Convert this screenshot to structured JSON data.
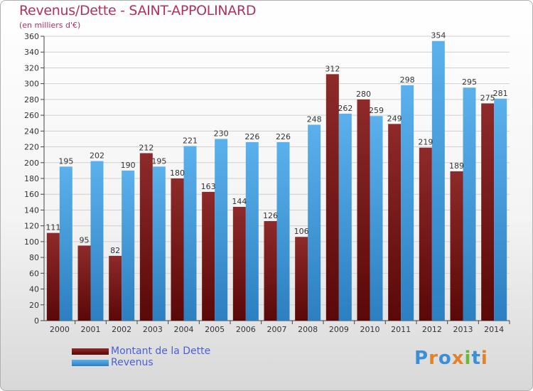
{
  "chart_data": {
    "type": "bar",
    "title": "Revenus/Dette - SAINT-APPOLINARD",
    "subtitle": "(en milliers d'€)",
    "categories": [
      "2000",
      "2001",
      "2002",
      "2003",
      "2004",
      "2005",
      "2006",
      "2007",
      "2008",
      "2009",
      "2010",
      "2011",
      "2012",
      "2013",
      "2014"
    ],
    "series": [
      {
        "name": "Montant de la Dette",
        "color": "#7a1a1a",
        "values": [
          111,
          95,
          82,
          212,
          180,
          163,
          144,
          126,
          106,
          312,
          280,
          249,
          219,
          189,
          275
        ]
      },
      {
        "name": "Revenus",
        "color": "#4aa3e0",
        "values": [
          195,
          202,
          190,
          195,
          221,
          230,
          226,
          226,
          248,
          262,
          259,
          298,
          354,
          295,
          281
        ]
      }
    ],
    "ylim": [
      0,
      360
    ],
    "ytick_step": 20,
    "grid": true,
    "legend_position": "bottom-left"
  },
  "logo": {
    "text": "Proxiti",
    "colors": [
      "#3a8fd8",
      "#e0822a",
      "#3a8fd8",
      "#e0822a",
      "#6ab83a",
      "#3a8fd8",
      "#e0822a"
    ]
  }
}
